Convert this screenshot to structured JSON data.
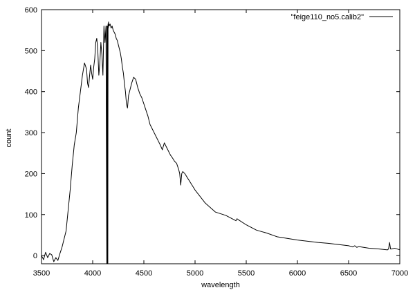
{
  "chart_data": {
    "type": "line",
    "title": "",
    "xlabel": "wavelength",
    "ylabel": "count",
    "xlim": [
      3500,
      7000
    ],
    "ylim": [
      -20,
      600
    ],
    "xticks": [
      3500,
      4000,
      4500,
      5000,
      5500,
      6000,
      6500,
      7000
    ],
    "yticks": [
      0,
      100,
      200,
      300,
      400,
      500,
      600
    ],
    "grid": false,
    "legend_position": "top-right",
    "series": [
      {
        "name": "\"feige110_no5.calib2\"",
        "color": "#000000",
        "x": [
          3500,
          3520,
          3540,
          3560,
          3580,
          3600,
          3620,
          3640,
          3660,
          3680,
          3700,
          3720,
          3740,
          3760,
          3780,
          3800,
          3820,
          3840,
          3860,
          3880,
          3900,
          3920,
          3940,
          3950,
          3960,
          3970,
          3980,
          3990,
          4000,
          4010,
          4020,
          4030,
          4040,
          4050,
          4060,
          4070,
          4080,
          4090,
          4100,
          4110,
          4120,
          4130,
          4138,
          4140,
          4142,
          4145,
          4148,
          4150,
          4152,
          4155,
          4160,
          4170,
          4180,
          4190,
          4200,
          4210,
          4220,
          4230,
          4240,
          4250,
          4260,
          4270,
          4280,
          4290,
          4300,
          4310,
          4320,
          4330,
          4340,
          4350,
          4360,
          4380,
          4400,
          4420,
          4440,
          4460,
          4480,
          4500,
          4520,
          4540,
          4560,
          4580,
          4600,
          4620,
          4640,
          4660,
          4680,
          4700,
          4720,
          4740,
          4760,
          4780,
          4800,
          4820,
          4840,
          4850,
          4860,
          4870,
          4880,
          4900,
          4950,
          5000,
          5100,
          5200,
          5300,
          5400,
          5410,
          5420,
          5500,
          5600,
          5700,
          5800,
          5900,
          6000,
          6100,
          6200,
          6300,
          6400,
          6500,
          6540,
          6560,
          6580,
          6600,
          6700,
          6800,
          6880,
          6890,
          6900,
          6910,
          6920,
          6950,
          7000
        ],
        "y": [
          0,
          -10,
          8,
          -5,
          5,
          2,
          -15,
          -5,
          -12,
          5,
          20,
          40,
          60,
          110,
          160,
          220,
          270,
          300,
          360,
          400,
          440,
          470,
          455,
          420,
          410,
          440,
          465,
          445,
          430,
          460,
          480,
          520,
          530,
          500,
          440,
          470,
          520,
          490,
          440,
          560,
          520,
          560,
          -20,
          560,
          -20,
          560,
          -20,
          565,
          555,
          570,
          560,
          565,
          555,
          560,
          550,
          545,
          540,
          530,
          525,
          515,
          505,
          495,
          480,
          460,
          445,
          420,
          400,
          370,
          360,
          390,
          400,
          420,
          435,
          430,
          410,
          395,
          385,
          370,
          355,
          340,
          320,
          310,
          300,
          290,
          280,
          270,
          258,
          275,
          265,
          255,
          245,
          238,
          230,
          225,
          210,
          200,
          172,
          200,
          205,
          200,
          180,
          160,
          128,
          106,
          98,
          85,
          90,
          88,
          75,
          62,
          55,
          46,
          42,
          38,
          35,
          32,
          30,
          27,
          24,
          21,
          24,
          20,
          22,
          18,
          16,
          14,
          16,
          32,
          16,
          16,
          18,
          14
        ]
      }
    ]
  }
}
